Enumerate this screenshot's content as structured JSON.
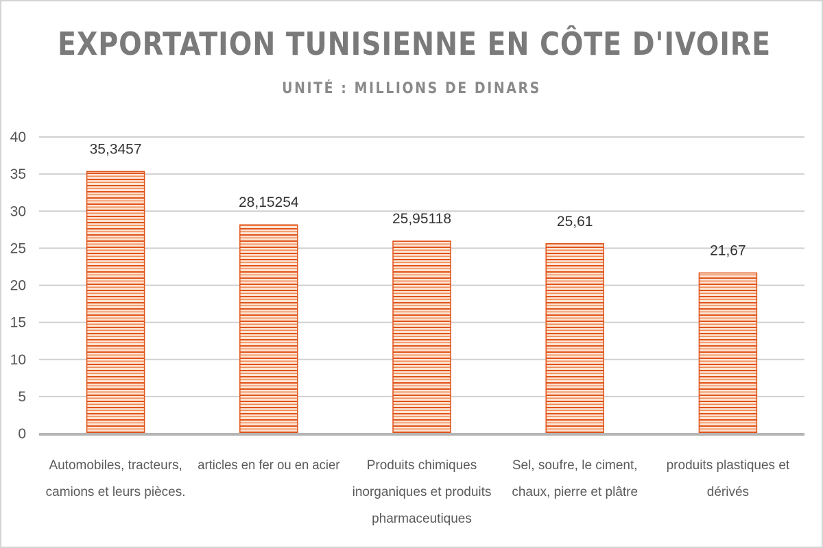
{
  "chart_data": {
    "type": "bar",
    "title": "EXPORTATION TUNISIENNE EN CÔTE D'IVOIRE",
    "subtitle": "UNITÉ : MILLIONS DE DINARS",
    "xlabel": "",
    "ylabel": "",
    "ylim": [
      0,
      40
    ],
    "yticks": [
      0,
      5,
      10,
      15,
      20,
      25,
      30,
      35,
      40
    ],
    "grid": true,
    "legend": "none",
    "categories": [
      [
        "Automobiles, tracteurs,",
        "camions et leurs pièces."
      ],
      [
        "articles en fer ou en acier"
      ],
      [
        "Produits chimiques",
        "inorganiques et produits",
        "pharmaceutiques"
      ],
      [
        "Sel, soufre, le ciment,",
        "chaux, pierre et plâtre"
      ],
      [
        "produits plastiques et",
        "dérivés"
      ]
    ],
    "values": [
      35.3457,
      28.15254,
      25.95118,
      25.61,
      21.67
    ],
    "data_labels": [
      "35,3457",
      "28,15254",
      "25,95118",
      "25,61",
      "21,67"
    ],
    "colors": {
      "bar_dark": "#e0531a",
      "bar_light": "#fde4d3",
      "grid": "#d0d0d0",
      "axis": "#b5b5b5"
    }
  }
}
